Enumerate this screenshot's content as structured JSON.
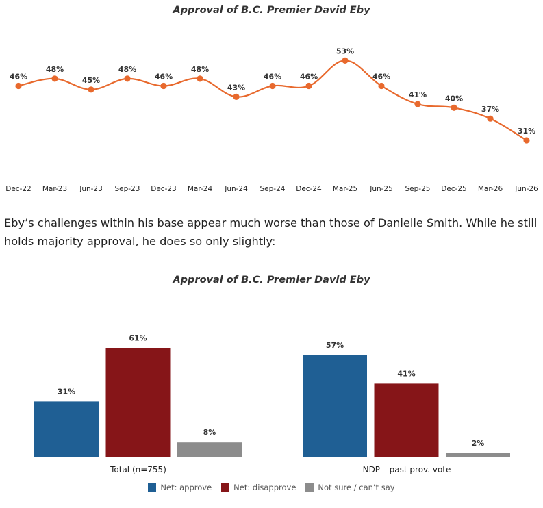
{
  "paragraph": "Eby’s challenges within his base appear much worse than those of Danielle Smith. While he still holds majority approval, he does so only slightly:",
  "chart_data": [
    {
      "type": "line",
      "title": "Approval of B.C. Premier David Eby",
      "x": [
        "Dec-22",
        "Mar-23",
        "Jun-23",
        "Sep-23",
        "Dec-23",
        "Mar-24",
        "Jun-24",
        "Sep-24",
        "Dec-24",
        "Mar-25",
        "Jun-25",
        "Sep-25",
        "Dec-25",
        "Mar-26",
        "Jun-26"
      ],
      "values": [
        46,
        48,
        45,
        48,
        46,
        48,
        43,
        46,
        46,
        53,
        46,
        41,
        40,
        37,
        31
      ],
      "labels": [
        "46%",
        "48%",
        "45%",
        "48%",
        "46%",
        "48%",
        "43%",
        "46%",
        "46%",
        "53%",
        "46%",
        "41%",
        "40%",
        "37%",
        "31%"
      ],
      "color": "#e8692d",
      "grid": false
    },
    {
      "type": "bar",
      "title": "Approval of B.C. Premier David Eby",
      "categories": [
        "Total (n=755)",
        "NDP – past prov. vote"
      ],
      "series": [
        {
          "name": "Net: approve",
          "color": "#1f5f94",
          "values": [
            31,
            57
          ],
          "labels": [
            "31%",
            "57%"
          ]
        },
        {
          "name": "Net: disapprove",
          "color": "#861518",
          "values": [
            61,
            41
          ],
          "labels": [
            "61%",
            "41%"
          ]
        },
        {
          "name": "Not sure / can’t say",
          "color": "#8c8c8c",
          "values": [
            8,
            2
          ],
          "labels": [
            "8%",
            "2%"
          ]
        }
      ],
      "legend": "bottom",
      "grid": false
    }
  ]
}
